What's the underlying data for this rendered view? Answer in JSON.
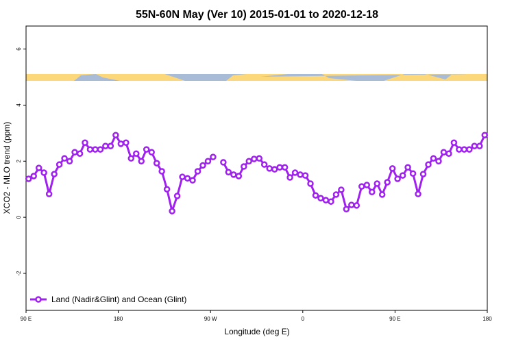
{
  "chart_data": {
    "type": "line",
    "title": "55N-60N May (Ver 10)   2015-01-01 to 2020-12-18",
    "x_label": "Longitude (deg E)",
    "y_label": "XCO2 - MLO trend (ppm)",
    "xlim": [
      90,
      540
    ],
    "ylim": [
      -3.32,
      6.82
    ],
    "xticks": [
      {
        "value": 90,
        "label": "90 E"
      },
      180,
      {
        "value": 270,
        "label": "90 W"
      },
      {
        "value": 360,
        "label": "0"
      },
      {
        "value": 450,
        "label": "90 E"
      },
      {
        "value": 540,
        "label": "180"
      }
    ],
    "yticks": [
      -2,
      0,
      2,
      4,
      6
    ],
    "legend": "bottom-left",
    "x": [
      92.5,
      97.5,
      102.5,
      107.5,
      112.5,
      117.5,
      122.5,
      127.5,
      132.5,
      137.5,
      142.5,
      147.5,
      152.5,
      157.5,
      162.5,
      167.5,
      172.5,
      177.5,
      182.5,
      187.5,
      192.5,
      197.5,
      202.5,
      207.5,
      212.5,
      217.5,
      222.5,
      227.5,
      232.5,
      237.5,
      242.5,
      247.5,
      252.5,
      257.5,
      262.5,
      267.5,
      272.5,
      277.5,
      282.5,
      287.5,
      292.5,
      297.5,
      302.5,
      307.5,
      312.5,
      317.5,
      322.5,
      327.5,
      332.5,
      337.5,
      342.5,
      347.5,
      352.5,
      357.5,
      362.5,
      367.5,
      372.5,
      377.5,
      382.5,
      387.5,
      392.5,
      397.5,
      402.5,
      407.5,
      412.5,
      417.5,
      422.5,
      427.5,
      432.5,
      437.5,
      442.5,
      447.5,
      452.5,
      457.5,
      462.5,
      467.5,
      472.5,
      477.5,
      482.5,
      487.5,
      492.5,
      497.5,
      502.5,
      507.5,
      512.5,
      517.5,
      522.5,
      527.5,
      532.5,
      537.5
    ],
    "series": [
      {
        "name": "Land (Nadir&Glint) and Ocean (Glint)",
        "color": "#a020f0",
        "values": [
          1.37,
          1.47,
          1.76,
          1.59,
          0.83,
          1.54,
          1.88,
          2.1,
          2.0,
          2.32,
          2.27,
          2.66,
          2.42,
          2.42,
          2.42,
          2.54,
          2.54,
          2.93,
          2.62,
          2.66,
          2.1,
          2.27,
          2.0,
          2.42,
          2.32,
          1.93,
          1.64,
          1.0,
          0.22,
          0.76,
          1.44,
          1.39,
          1.32,
          1.64,
          1.85,
          2.0,
          2.15,
          null,
          1.96,
          1.61,
          1.52,
          1.47,
          1.81,
          2.0,
          2.08,
          2.1,
          1.88,
          1.74,
          1.71,
          1.78,
          1.78,
          1.42,
          1.59,
          1.52,
          1.49,
          1.2,
          0.78,
          0.68,
          0.61,
          0.56,
          0.81,
          0.98,
          0.29,
          0.44,
          0.42,
          1.1,
          1.15,
          0.9,
          1.2,
          0.81,
          1.25,
          1.74,
          1.37,
          1.49,
          1.78,
          1.56,
          0.83,
          1.54,
          1.88,
          2.1,
          2.0,
          2.32,
          2.27,
          2.66,
          2.42,
          2.42,
          2.42,
          2.54,
          2.54,
          2.93
        ]
      }
    ]
  }
}
